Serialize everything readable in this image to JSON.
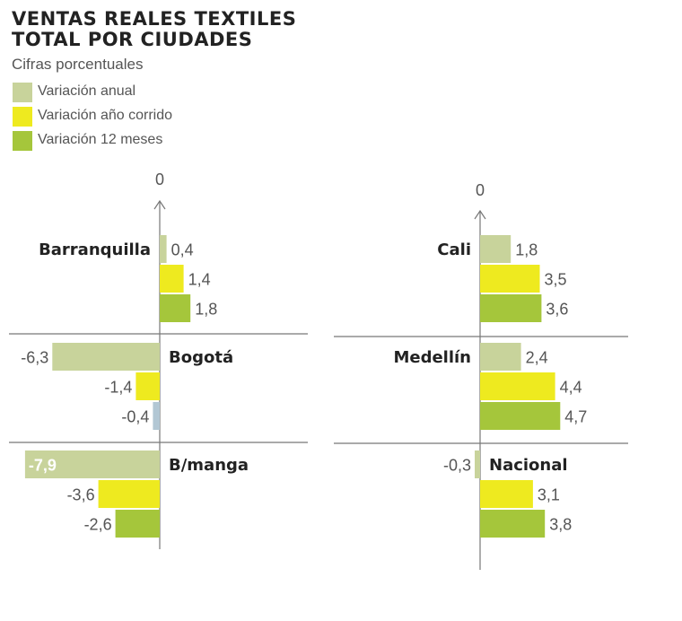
{
  "title_line1": "VENTAS REALES TEXTILES",
  "title_line2": "TOTAL POR CIUDADES",
  "subtitle": "Cifras porcentuales",
  "colors": {
    "anual": "#c8d39b",
    "anio_corrido": "#eeea1f",
    "doce_meses": "#a5c63b",
    "small_negative": "#b2c7d4",
    "grid": "#777777",
    "highlight_label": "#ffffff"
  },
  "chart_data": {
    "type": "bar",
    "orientation": "horizontal",
    "title": "VENTAS REALES TEXTILES TOTAL POR CIUDADES",
    "subtitle": "Cifras porcentuales",
    "axis_zero_label": "0",
    "series": [
      {
        "name": "Variación anual",
        "key": "anual"
      },
      {
        "name": "Variación año corrido",
        "key": "anio_corrido"
      },
      {
        "name": "Variación 12 meses",
        "key": "doce_meses"
      }
    ],
    "panels": [
      {
        "name": "left",
        "cities": [
          {
            "city": "Barranquilla",
            "values": [
              0.4,
              1.4,
              1.8
            ],
            "labels": [
              "0,4",
              "1,4",
              "1,8"
            ]
          },
          {
            "city": "Bogotá",
            "values": [
              -6.3,
              -1.4,
              -0.4
            ],
            "labels": [
              "-6,3",
              "-1,4",
              "-0,4"
            ]
          },
          {
            "city": "B/manga",
            "values": [
              -7.9,
              -3.6,
              -2.6
            ],
            "labels": [
              "-7,9",
              "-3,6",
              "-2,6"
            ]
          }
        ]
      },
      {
        "name": "right",
        "cities": [
          {
            "city": "Cali",
            "values": [
              1.8,
              3.5,
              3.6
            ],
            "labels": [
              "1,8",
              "3,5",
              "3,6"
            ]
          },
          {
            "city": "Medellín",
            "values": [
              2.4,
              4.4,
              4.7
            ],
            "labels": [
              "2,4",
              "4,4",
              "4,7"
            ]
          },
          {
            "city": "Nacional",
            "values": [
              -0.3,
              3.1,
              3.8
            ],
            "labels": [
              "-0,3",
              "3,1",
              "3,8"
            ]
          }
        ]
      }
    ]
  }
}
